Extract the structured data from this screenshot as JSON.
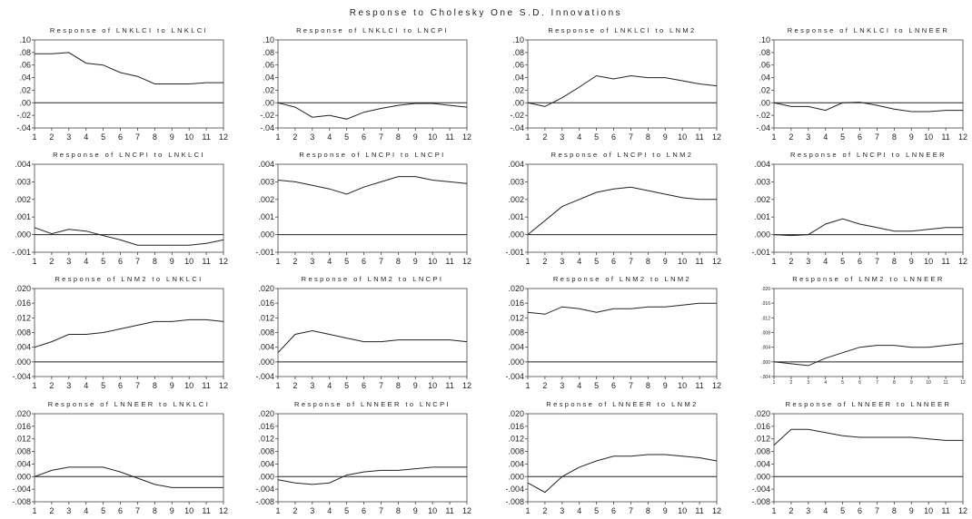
{
  "title": "Response to Cholesky One S.D. Innovations",
  "chart_data": [
    {
      "type": "line",
      "title": "Response of LNKLCI to LNKLCI",
      "x": [
        1,
        2,
        3,
        4,
        5,
        6,
        7,
        8,
        9,
        10,
        11,
        12
      ],
      "values": [
        0.078,
        0.078,
        0.08,
        0.063,
        0.06,
        0.048,
        0.042,
        0.03,
        0.03,
        0.03,
        0.032,
        0.032
      ],
      "ylim": [
        -0.04,
        0.1
      ],
      "yticks": [
        ".10",
        ".08",
        ".06",
        ".04",
        ".02",
        ".00",
        "-.02",
        "-.04"
      ]
    },
    {
      "type": "line",
      "title": "Response of LNKLCI to LNCPI",
      "x": [
        1,
        2,
        3,
        4,
        5,
        6,
        7,
        8,
        9,
        10,
        11,
        12
      ],
      "values": [
        0.0,
        -0.007,
        -0.023,
        -0.02,
        -0.026,
        -0.015,
        -0.009,
        -0.004,
        -0.001,
        -0.001,
        -0.004,
        -0.007
      ],
      "ylim": [
        -0.04,
        0.1
      ],
      "yticks": [
        ".10",
        ".08",
        ".06",
        ".04",
        ".02",
        ".00",
        "-.02",
        "-.04"
      ]
    },
    {
      "type": "line",
      "title": "Response of LNKLCI to LNM2",
      "x": [
        1,
        2,
        3,
        4,
        5,
        6,
        7,
        8,
        9,
        10,
        11,
        12
      ],
      "values": [
        0.0,
        -0.006,
        0.008,
        0.025,
        0.043,
        0.038,
        0.043,
        0.04,
        0.04,
        0.035,
        0.03,
        0.027
      ],
      "ylim": [
        -0.04,
        0.1
      ],
      "yticks": [
        ".10",
        ".08",
        ".06",
        ".04",
        ".02",
        ".00",
        "-.02",
        "-.04"
      ]
    },
    {
      "type": "line",
      "title": "Response of LNKLCI to LNNEER",
      "x": [
        1,
        2,
        3,
        4,
        5,
        6,
        7,
        8,
        9,
        10,
        11,
        12
      ],
      "values": [
        0.0,
        -0.006,
        -0.006,
        -0.012,
        0.0,
        0.001,
        -0.004,
        -0.01,
        -0.014,
        -0.014,
        -0.012,
        -0.012
      ],
      "ylim": [
        -0.04,
        0.1
      ],
      "yticks": [
        ".10",
        ".08",
        ".06",
        ".04",
        ".02",
        ".00",
        "-.02",
        "-.04"
      ]
    },
    {
      "type": "line",
      "title": "Response of LNCPI to LNKLCI",
      "x": [
        1,
        2,
        3,
        4,
        5,
        6,
        7,
        8,
        9,
        10,
        11,
        12
      ],
      "values": [
        0.0004,
        5e-05,
        0.0003,
        0.0002,
        -5e-05,
        -0.0003,
        -0.0006,
        -0.0006,
        -0.0006,
        -0.0006,
        -0.0005,
        -0.0003
      ],
      "ylim": [
        -0.001,
        0.004
      ],
      "yticks": [
        ".004",
        ".003",
        ".002",
        ".001",
        ".000",
        "-.001"
      ]
    },
    {
      "type": "line",
      "title": "Response of LNCPI to LNCPI",
      "x": [
        1,
        2,
        3,
        4,
        5,
        6,
        7,
        8,
        9,
        10,
        11,
        12
      ],
      "values": [
        0.0031,
        0.003,
        0.0028,
        0.0026,
        0.0023,
        0.0027,
        0.003,
        0.0033,
        0.0033,
        0.0031,
        0.003,
        0.0029
      ],
      "ylim": [
        -0.001,
        0.004
      ],
      "yticks": [
        ".004",
        ".003",
        ".002",
        ".001",
        ".000",
        "-.001"
      ]
    },
    {
      "type": "line",
      "title": "Response of LNCPI to LNM2",
      "x": [
        1,
        2,
        3,
        4,
        5,
        6,
        7,
        8,
        9,
        10,
        11,
        12
      ],
      "values": [
        0.0,
        0.0008,
        0.0016,
        0.002,
        0.0024,
        0.0026,
        0.0027,
        0.0025,
        0.0023,
        0.0021,
        0.002,
        0.002
      ],
      "ylim": [
        -0.001,
        0.004
      ],
      "yticks": [
        ".004",
        ".003",
        ".002",
        ".001",
        ".000",
        "-.001"
      ]
    },
    {
      "type": "line",
      "title": "Response of LNCPI to LNNEER",
      "x": [
        1,
        2,
        3,
        4,
        5,
        6,
        7,
        8,
        9,
        10,
        11,
        12
      ],
      "values": [
        0.0,
        -5e-05,
        0.0,
        0.0006,
        0.0009,
        0.0006,
        0.0004,
        0.0002,
        0.0002,
        0.0003,
        0.0004,
        0.0004
      ],
      "ylim": [
        -0.001,
        0.004
      ],
      "yticks": [
        ".004",
        ".003",
        ".002",
        ".001",
        ".000",
        "-.001"
      ]
    },
    {
      "type": "line",
      "title": "Response of LNM2 to LNKLCI",
      "x": [
        1,
        2,
        3,
        4,
        5,
        6,
        7,
        8,
        9,
        10,
        11,
        12
      ],
      "values": [
        0.004,
        0.0055,
        0.0075,
        0.0075,
        0.008,
        0.009,
        0.01,
        0.011,
        0.011,
        0.0115,
        0.0115,
        0.011
      ],
      "ylim": [
        -0.004,
        0.02
      ],
      "yticks": [
        ".020",
        ".016",
        ".012",
        ".008",
        ".004",
        ".000",
        "-.004"
      ]
    },
    {
      "type": "line",
      "title": "Response of LNM2 to LNCPI",
      "x": [
        1,
        2,
        3,
        4,
        5,
        6,
        7,
        8,
        9,
        10,
        11,
        12
      ],
      "values": [
        0.0025,
        0.0075,
        0.0085,
        0.0075,
        0.0065,
        0.0055,
        0.0055,
        0.006,
        0.006,
        0.006,
        0.006,
        0.0055
      ],
      "ylim": [
        -0.004,
        0.02
      ],
      "yticks": [
        ".020",
        ".016",
        ".012",
        ".008",
        ".004",
        ".000",
        "-.004"
      ]
    },
    {
      "type": "line",
      "title": "Response of LNM2 to LNM2",
      "x": [
        1,
        2,
        3,
        4,
        5,
        6,
        7,
        8,
        9,
        10,
        11,
        12
      ],
      "values": [
        0.0135,
        0.013,
        0.015,
        0.0145,
        0.0135,
        0.0145,
        0.0145,
        0.015,
        0.015,
        0.0155,
        0.016,
        0.016
      ],
      "ylim": [
        -0.004,
        0.02
      ],
      "yticks": [
        ".020",
        ".016",
        ".012",
        ".008",
        ".004",
        ".000",
        "-.004"
      ]
    },
    {
      "type": "line",
      "title": "Response of LNM2 to LNNEER",
      "x": [
        1,
        2,
        3,
        4,
        5,
        6,
        7,
        8,
        9,
        10,
        11,
        12
      ],
      "values": [
        0.0,
        -0.0005,
        -0.001,
        0.001,
        0.0025,
        0.004,
        0.0045,
        0.0045,
        0.004,
        0.004,
        0.0045,
        0.005
      ],
      "ylim": [
        -0.004,
        0.02
      ],
      "yticks": [
        ".020",
        ".016",
        ".012",
        ".008",
        ".004",
        ".000",
        "-.004"
      ],
      "small_ticks": true
    },
    {
      "type": "line",
      "title": "Response of LNNEER to LNKLCI",
      "x": [
        1,
        2,
        3,
        4,
        5,
        6,
        7,
        8,
        9,
        10,
        11,
        12
      ],
      "values": [
        0.0,
        0.002,
        0.003,
        0.003,
        0.003,
        0.0015,
        -0.0005,
        -0.0025,
        -0.0035,
        -0.0035,
        -0.0035,
        -0.0035
      ],
      "ylim": [
        -0.008,
        0.02
      ],
      "yticks": [
        ".020",
        ".016",
        ".012",
        ".008",
        ".004",
        ".000",
        "-.004",
        "-.008"
      ]
    },
    {
      "type": "line",
      "title": "Response of LNNEER to LNCPI",
      "x": [
        1,
        2,
        3,
        4,
        5,
        6,
        7,
        8,
        9,
        10,
        11,
        12
      ],
      "values": [
        -0.001,
        -0.002,
        -0.0025,
        -0.002,
        0.0005,
        0.0015,
        0.002,
        0.002,
        0.0025,
        0.003,
        0.003,
        0.003
      ],
      "ylim": [
        -0.008,
        0.02
      ],
      "yticks": [
        ".020",
        ".016",
        ".012",
        ".008",
        ".004",
        ".000",
        "-.004",
        "-.008"
      ]
    },
    {
      "type": "line",
      "title": "Response of LNNEER to LNM2",
      "x": [
        1,
        2,
        3,
        4,
        5,
        6,
        7,
        8,
        9,
        10,
        11,
        12
      ],
      "values": [
        -0.002,
        -0.005,
        0.0,
        0.003,
        0.005,
        0.0065,
        0.0065,
        0.007,
        0.007,
        0.0065,
        0.006,
        0.005
      ],
      "ylim": [
        -0.008,
        0.02
      ],
      "yticks": [
        ".020",
        ".016",
        ".012",
        ".008",
        ".004",
        ".000",
        "-.004",
        "-.008"
      ]
    },
    {
      "type": "line",
      "title": "Response of LNNEER to LNNEER",
      "x": [
        1,
        2,
        3,
        4,
        5,
        6,
        7,
        8,
        9,
        10,
        11,
        12
      ],
      "values": [
        0.01,
        0.015,
        0.015,
        0.014,
        0.013,
        0.0125,
        0.0125,
        0.0125,
        0.0125,
        0.012,
        0.0115,
        0.0115
      ],
      "ylim": [
        -0.008,
        0.02
      ],
      "yticks": [
        ".020",
        ".016",
        ".012",
        ".008",
        ".004",
        ".000",
        "-.004",
        "-.008"
      ]
    }
  ]
}
